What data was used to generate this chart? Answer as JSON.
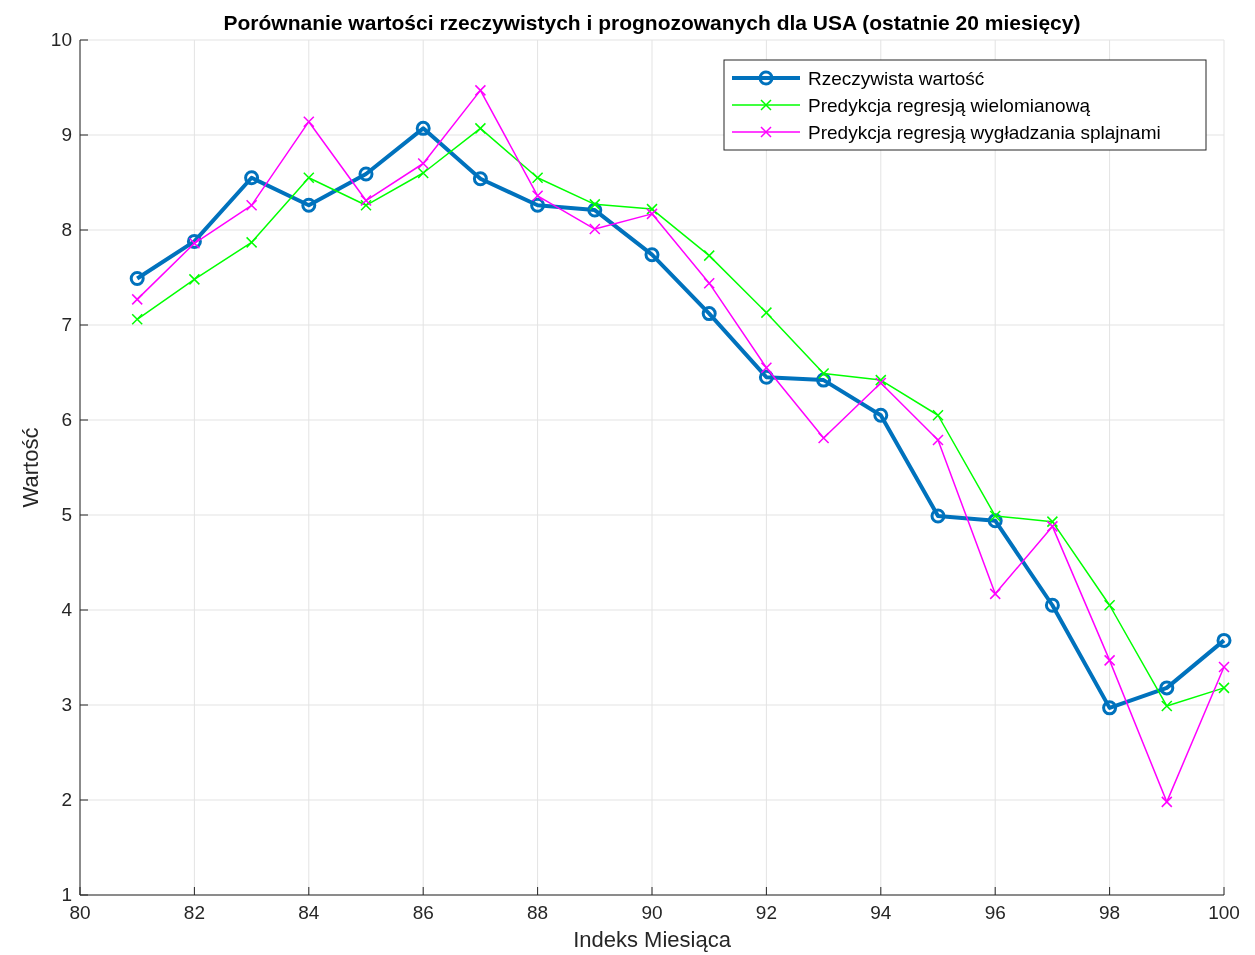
{
  "chart_data": {
    "type": "line",
    "title": "Porównanie wartości rzeczywistych i prognozowanych dla USA (ostatnie 20 miesięcy)",
    "xlabel": "Indeks Miesiąca",
    "ylabel": "Wartość",
    "x": [
      81,
      82,
      83,
      84,
      85,
      86,
      87,
      88,
      89,
      90,
      91,
      92,
      93,
      94,
      95,
      96,
      97,
      98,
      99,
      100
    ],
    "series": [
      {
        "name": "Rzeczywista wartość",
        "color": "#0072bd",
        "marker": "circle",
        "values": [
          7.49,
          7.88,
          8.55,
          8.26,
          8.59,
          9.07,
          8.54,
          8.26,
          8.21,
          7.74,
          7.12,
          6.45,
          6.42,
          6.05,
          4.99,
          4.94,
          4.05,
          2.97,
          3.18,
          3.68
        ]
      },
      {
        "name": "Predykcja regresją wielomianową",
        "color": "#00ff00",
        "marker": "cross",
        "values": [
          7.06,
          7.48,
          7.87,
          8.55,
          8.26,
          8.6,
          9.07,
          8.55,
          8.27,
          8.22,
          7.73,
          7.13,
          6.49,
          6.42,
          6.05,
          4.99,
          4.93,
          4.05,
          2.99,
          3.18
        ]
      },
      {
        "name": "Predykcja regresją wygładzania splajnami",
        "color": "#ff00ff",
        "marker": "cross",
        "values": [
          7.27,
          7.86,
          8.26,
          9.14,
          8.31,
          8.7,
          9.47,
          8.36,
          8.01,
          8.17,
          7.44,
          6.55,
          5.81,
          6.39,
          5.79,
          4.17,
          4.88,
          3.47,
          1.98,
          3.4
        ]
      }
    ],
    "xlim": [
      80,
      100
    ],
    "xticks": [
      80,
      82,
      84,
      86,
      88,
      90,
      92,
      94,
      96,
      98,
      100
    ],
    "ylim": [
      1,
      10
    ],
    "yticks": [
      1,
      2,
      3,
      4,
      5,
      6,
      7,
      8,
      9,
      10
    ],
    "grid": true,
    "legend": "top right"
  }
}
